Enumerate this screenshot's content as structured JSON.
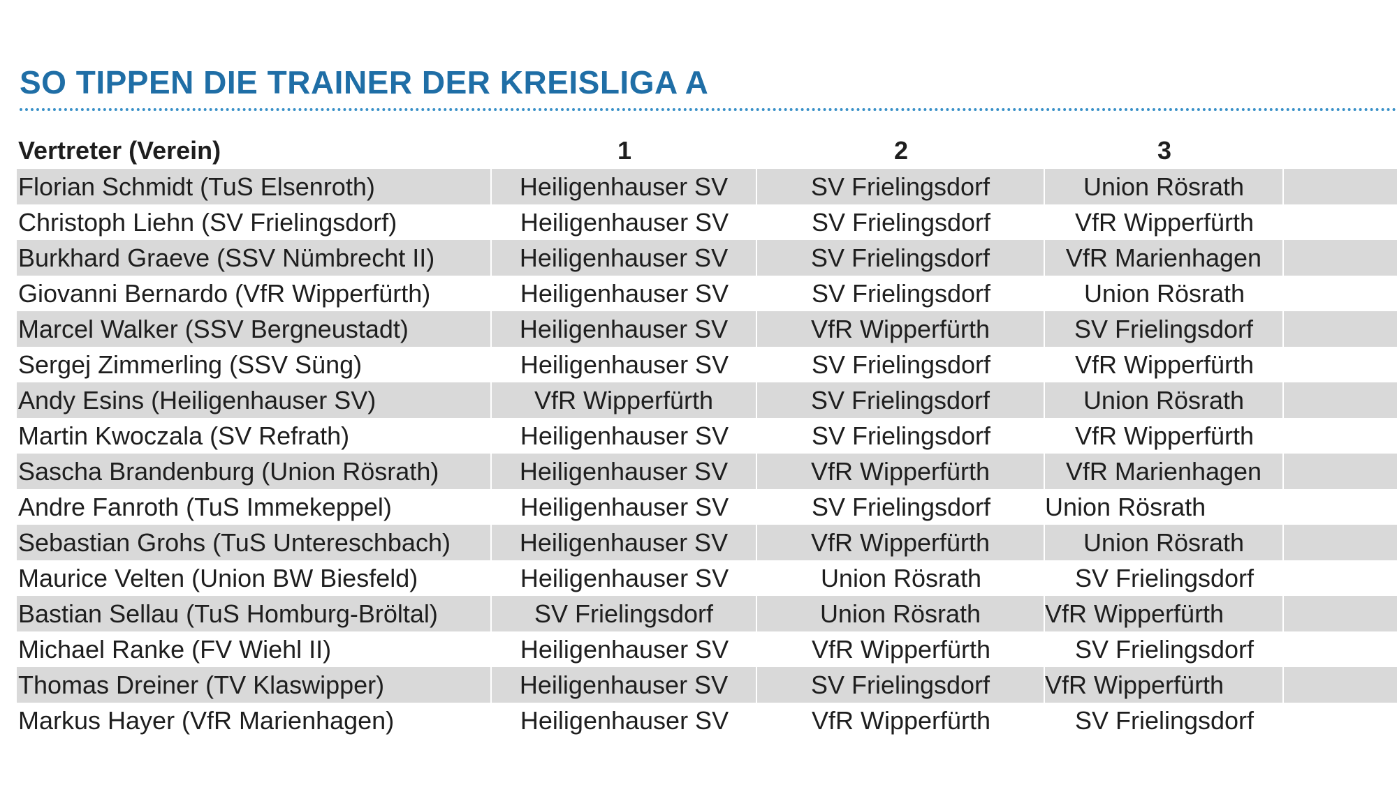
{
  "title": "SO TIPPEN DIE TRAINER DER KREISLIGA A",
  "headers": [
    "Vertreter (Verein)",
    "1",
    "2",
    "3"
  ],
  "rows": [
    [
      "Florian Schmidt (TuS Elsenroth)",
      "Heiligenhauser SV",
      "SV Frielingsdorf",
      "Union Rösrath"
    ],
    [
      "Christoph Liehn (SV Frielingsdorf)",
      "Heiligenhauser SV",
      "SV Frielingsdorf",
      "VfR Wipperfürth"
    ],
    [
      "Burkhard Graeve (SSV Nümbrecht II)",
      "Heiligenhauser SV",
      "SV Frielingsdorf",
      "VfR Marienhagen"
    ],
    [
      "Giovanni Bernardo (VfR Wipperfürth)",
      "Heiligenhauser SV",
      "SV Frielingsdorf",
      "Union Rösrath"
    ],
    [
      "Marcel Walker (SSV Bergneustadt)",
      "Heiligenhauser SV",
      "VfR Wipperfürth",
      "SV Frielingsdorf"
    ],
    [
      "Sergej Zimmerling (SSV Süng)",
      "Heiligenhauser SV",
      "SV Frielingsdorf",
      "VfR Wipperfürth"
    ],
    [
      "Andy Esins (Heiligenhauser SV)",
      "VfR Wipperfürth",
      "SV Frielingsdorf",
      "Union Rösrath"
    ],
    [
      "Martin Kwoczala (SV Refrath)",
      "Heiligenhauser SV",
      "SV Frielingsdorf",
      "VfR Wipperfürth"
    ],
    [
      "Sascha Brandenburg (Union Rösrath)",
      "Heiligenhauser SV",
      "VfR Wipperfürth",
      "VfR Marienhagen"
    ],
    [
      "Andre Fanroth (TuS Immekeppel)",
      "Heiligenhauser SV",
      "SV Frielingsdorf",
      "Union Rösrath"
    ],
    [
      "Sebastian Grohs (TuS Untereschbach)",
      "Heiligenhauser SV",
      "VfR Wipperfürth",
      "Union Rösrath"
    ],
    [
      "Maurice Velten (Union BW Biesfeld)",
      "Heiligenhauser SV",
      "Union Rösrath",
      "SV Frielingsdorf"
    ],
    [
      "Bastian Sellau (TuS Homburg-Bröltal)",
      "SV Frielingsdorf",
      "Union Rösrath",
      "VfR Wipperfürth"
    ],
    [
      "Michael Ranke (FV Wiehl II)",
      "Heiligenhauser SV",
      "VfR Wipperfürth",
      "SV Frielingsdorf"
    ],
    [
      "Thomas Dreiner (TV Klaswipper)",
      "Heiligenhauser SV",
      "SV Frielingsdorf",
      "VfR Wipperfürth"
    ],
    [
      "Markus Hayer (VfR Marienhagen)",
      "Heiligenhauser SV",
      "VfR Wipperfürth",
      "SV Frielingsdorf"
    ]
  ],
  "colors": {
    "title": "#1f6ea6",
    "rule": "#3a91c8",
    "row_shade": "#d9d9d9"
  }
}
